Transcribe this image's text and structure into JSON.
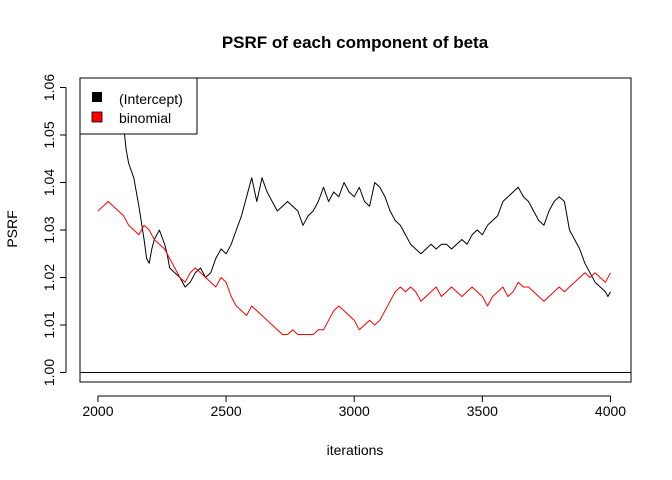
{
  "chart_data": {
    "type": "line",
    "title": "PSRF of each component of beta",
    "xlabel": "iterations",
    "ylabel": "PSRF",
    "xlim": [
      1930,
      4080
    ],
    "ylim": [
      0.998,
      1.062
    ],
    "xticks": [
      2000,
      2500,
      3000,
      3500,
      4000
    ],
    "xtick_labels": [
      "2000",
      "2500",
      "3000",
      "3500",
      "4000"
    ],
    "yticks": [
      1.0,
      1.01,
      1.02,
      1.03,
      1.04,
      1.05,
      1.06
    ],
    "ytick_labels": [
      "1.00",
      "1.01",
      "1.02",
      "1.03",
      "1.04",
      "1.05",
      "1.06"
    ],
    "reference_line": 1.0,
    "legend_position": "top-left",
    "series": [
      {
        "name": "(Intercept)",
        "color": "#000000",
        "x": [
          2000,
          2050,
          2100,
          2110,
          2120,
          2140,
          2160,
          2180,
          2190,
          2200,
          2210,
          2220,
          2240,
          2260,
          2270,
          2280,
          2300,
          2320,
          2340,
          2360,
          2380,
          2400,
          2420,
          2440,
          2460,
          2480,
          2500,
          2520,
          2540,
          2560,
          2580,
          2600,
          2620,
          2640,
          2660,
          2680,
          2700,
          2720,
          2740,
          2760,
          2780,
          2800,
          2820,
          2840,
          2860,
          2880,
          2900,
          2920,
          2940,
          2960,
          2980,
          3000,
          3020,
          3040,
          3060,
          3080,
          3100,
          3120,
          3140,
          3160,
          3180,
          3200,
          3220,
          3240,
          3260,
          3280,
          3300,
          3320,
          3340,
          3360,
          3380,
          3400,
          3420,
          3440,
          3460,
          3480,
          3500,
          3520,
          3540,
          3560,
          3580,
          3600,
          3620,
          3640,
          3660,
          3680,
          3700,
          3720,
          3740,
          3760,
          3780,
          3800,
          3820,
          3840,
          3860,
          3880,
          3900,
          3920,
          3940,
          3960,
          3980,
          3990,
          4000
        ],
        "values": [
          1.058,
          1.055,
          1.052,
          1.047,
          1.044,
          1.041,
          1.035,
          1.028,
          1.024,
          1.023,
          1.026,
          1.028,
          1.03,
          1.027,
          1.025,
          1.022,
          1.021,
          1.02,
          1.018,
          1.019,
          1.021,
          1.022,
          1.02,
          1.021,
          1.024,
          1.026,
          1.025,
          1.027,
          1.03,
          1.033,
          1.037,
          1.041,
          1.036,
          1.041,
          1.038,
          1.036,
          1.034,
          1.035,
          1.036,
          1.035,
          1.034,
          1.031,
          1.033,
          1.034,
          1.036,
          1.039,
          1.036,
          1.038,
          1.037,
          1.04,
          1.038,
          1.037,
          1.039,
          1.036,
          1.035,
          1.04,
          1.039,
          1.037,
          1.034,
          1.032,
          1.031,
          1.029,
          1.027,
          1.026,
          1.025,
          1.026,
          1.027,
          1.026,
          1.027,
          1.027,
          1.026,
          1.027,
          1.028,
          1.027,
          1.029,
          1.03,
          1.029,
          1.031,
          1.032,
          1.033,
          1.036,
          1.037,
          1.038,
          1.039,
          1.037,
          1.036,
          1.034,
          1.032,
          1.031,
          1.034,
          1.036,
          1.037,
          1.036,
          1.03,
          1.028,
          1.026,
          1.023,
          1.021,
          1.019,
          1.018,
          1.017,
          1.016,
          1.017
        ]
      },
      {
        "name": "binomial",
        "color": "#ff0000",
        "x": [
          2000,
          2020,
          2040,
          2060,
          2080,
          2100,
          2120,
          2140,
          2160,
          2180,
          2200,
          2220,
          2240,
          2260,
          2280,
          2300,
          2320,
          2340,
          2360,
          2380,
          2400,
          2420,
          2440,
          2460,
          2480,
          2500,
          2520,
          2540,
          2560,
          2580,
          2600,
          2620,
          2640,
          2660,
          2680,
          2700,
          2720,
          2740,
          2760,
          2780,
          2800,
          2820,
          2840,
          2860,
          2880,
          2900,
          2920,
          2940,
          2960,
          2980,
          3000,
          3020,
          3040,
          3060,
          3080,
          3100,
          3120,
          3140,
          3160,
          3180,
          3200,
          3220,
          3240,
          3260,
          3280,
          3300,
          3320,
          3340,
          3360,
          3380,
          3400,
          3420,
          3440,
          3460,
          3480,
          3500,
          3520,
          3540,
          3560,
          3580,
          3600,
          3620,
          3640,
          3660,
          3680,
          3700,
          3720,
          3740,
          3760,
          3780,
          3800,
          3820,
          3840,
          3860,
          3880,
          3900,
          3920,
          3940,
          3960,
          3980,
          4000
        ],
        "values": [
          1.034,
          1.035,
          1.036,
          1.035,
          1.034,
          1.033,
          1.031,
          1.03,
          1.029,
          1.031,
          1.03,
          1.028,
          1.027,
          1.026,
          1.024,
          1.022,
          1.02,
          1.019,
          1.021,
          1.022,
          1.021,
          1.02,
          1.019,
          1.018,
          1.02,
          1.019,
          1.016,
          1.014,
          1.013,
          1.012,
          1.014,
          1.013,
          1.012,
          1.011,
          1.01,
          1.009,
          1.008,
          1.008,
          1.009,
          1.008,
          1.008,
          1.008,
          1.008,
          1.009,
          1.009,
          1.011,
          1.013,
          1.014,
          1.013,
          1.012,
          1.011,
          1.009,
          1.01,
          1.011,
          1.01,
          1.011,
          1.013,
          1.015,
          1.017,
          1.018,
          1.017,
          1.018,
          1.017,
          1.015,
          1.016,
          1.017,
          1.018,
          1.016,
          1.017,
          1.018,
          1.017,
          1.016,
          1.017,
          1.018,
          1.017,
          1.016,
          1.014,
          1.016,
          1.017,
          1.018,
          1.016,
          1.017,
          1.019,
          1.018,
          1.018,
          1.017,
          1.016,
          1.015,
          1.016,
          1.017,
          1.018,
          1.017,
          1.018,
          1.019,
          1.02,
          1.021,
          1.02,
          1.021,
          1.02,
          1.019,
          1.021
        ]
      }
    ]
  }
}
